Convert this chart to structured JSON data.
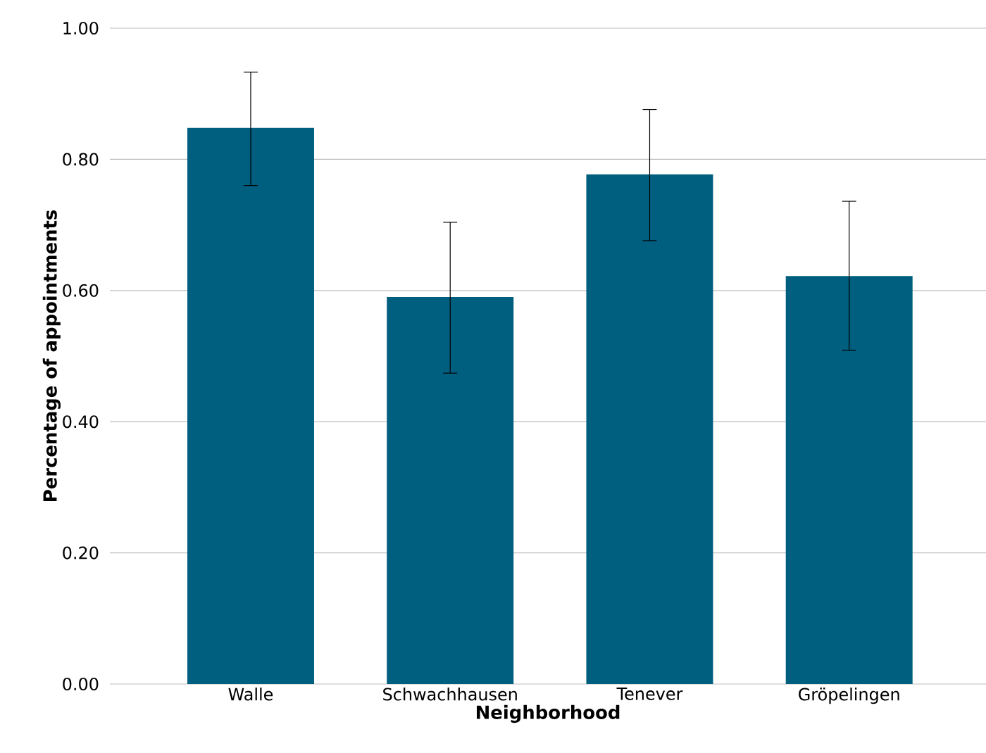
{
  "chart_data": {
    "type": "bar",
    "xlabel": "Neighborhood",
    "ylabel": "Percentage of appointments",
    "categories": [
      "Walle",
      "Schwachhausen",
      "Tenever",
      "Gröpelingen"
    ],
    "values": [
      0.848,
      0.59,
      0.777,
      0.622
    ],
    "errors": [
      [
        0.76,
        0.933
      ],
      [
        0.474,
        0.704
      ],
      [
        0.676,
        0.876
      ],
      [
        0.509,
        0.736
      ]
    ],
    "color": "#005f7f",
    "ylim": [
      0,
      1
    ],
    "yticks": [
      {
        "value": 0,
        "label": "0.00"
      },
      {
        "value": 0.2,
        "label": "0.20"
      },
      {
        "value": 0.4,
        "label": "0.40"
      },
      {
        "value": 0.6,
        "label": "0.60"
      },
      {
        "value": 0.8,
        "label": "0.80"
      },
      {
        "value": 1,
        "label": "1.00"
      }
    ],
    "grid": "y"
  }
}
